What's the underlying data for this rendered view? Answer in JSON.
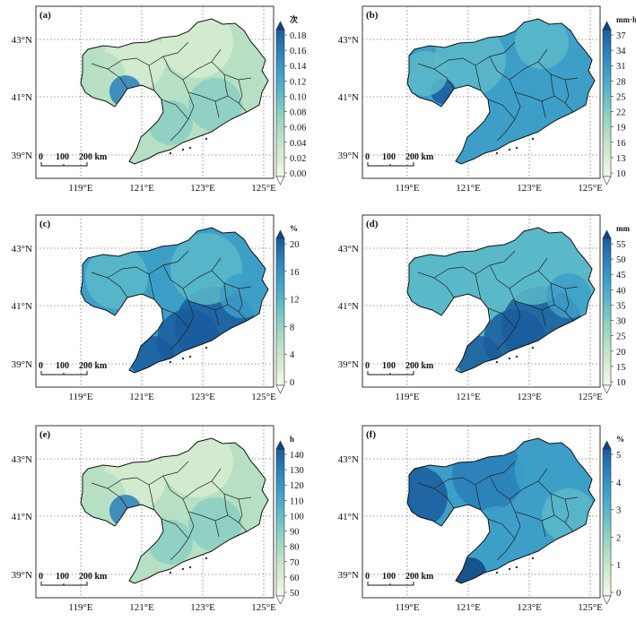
{
  "panels": [
    {
      "id": "a",
      "tag": "(a)",
      "unit": "次",
      "ticks": [
        "0.18",
        "0.16",
        "0.14",
        "0.12",
        "0.10",
        "0.08",
        "0.06",
        "0.04",
        "0.02",
        "0.00"
      ],
      "level": 0.35,
      "hot": "light"
    },
    {
      "id": "b",
      "tag": "(b)",
      "unit": "mm·h⁻¹",
      "ticks": [
        "37",
        "34",
        "31",
        "28",
        "25",
        "22",
        "19",
        "16",
        "13",
        "10"
      ],
      "level": 0.62,
      "hot": "mid"
    },
    {
      "id": "c",
      "tag": "(c)",
      "unit": "%",
      "ticks": [
        "20",
        "16",
        "12",
        "8",
        "4",
        "0"
      ],
      "level": 0.68,
      "hot": "southeast"
    },
    {
      "id": "d",
      "tag": "(d)",
      "unit": "mm",
      "ticks": [
        "55",
        "50",
        "45",
        "40",
        "35",
        "30",
        "25",
        "20",
        "15",
        "10"
      ],
      "level": 0.55,
      "hot": "southeast"
    },
    {
      "id": "e",
      "tag": "(e)",
      "unit": "h",
      "ticks": [
        "140",
        "130",
        "120",
        "110",
        "100",
        "90",
        "80",
        "70",
        "60",
        "50"
      ],
      "level": 0.42,
      "hot": "light"
    },
    {
      "id": "f",
      "tag": "(f)",
      "unit": "%",
      "ticks": [
        "5",
        "4",
        "3",
        "2",
        "1",
        "0"
      ],
      "level": 0.72,
      "hot": "west"
    }
  ],
  "lat_labels": [
    "43°N",
    "41°N",
    "39°N"
  ],
  "lon_labels": [
    "119°E",
    "121°E",
    "123°E",
    "125°E"
  ],
  "scale": {
    "labels": [
      "0",
      "100",
      "200 km"
    ]
  },
  "colors": {
    "c0": "#f4f9ee",
    "c1": "#d7ecd0",
    "c2": "#b6dfc3",
    "c3": "#8acfc4",
    "c4": "#5bb8c8",
    "c5": "#3d9fc8",
    "c6": "#2a7fb8",
    "c7": "#1a5c9e",
    "c8": "#10467f"
  }
}
